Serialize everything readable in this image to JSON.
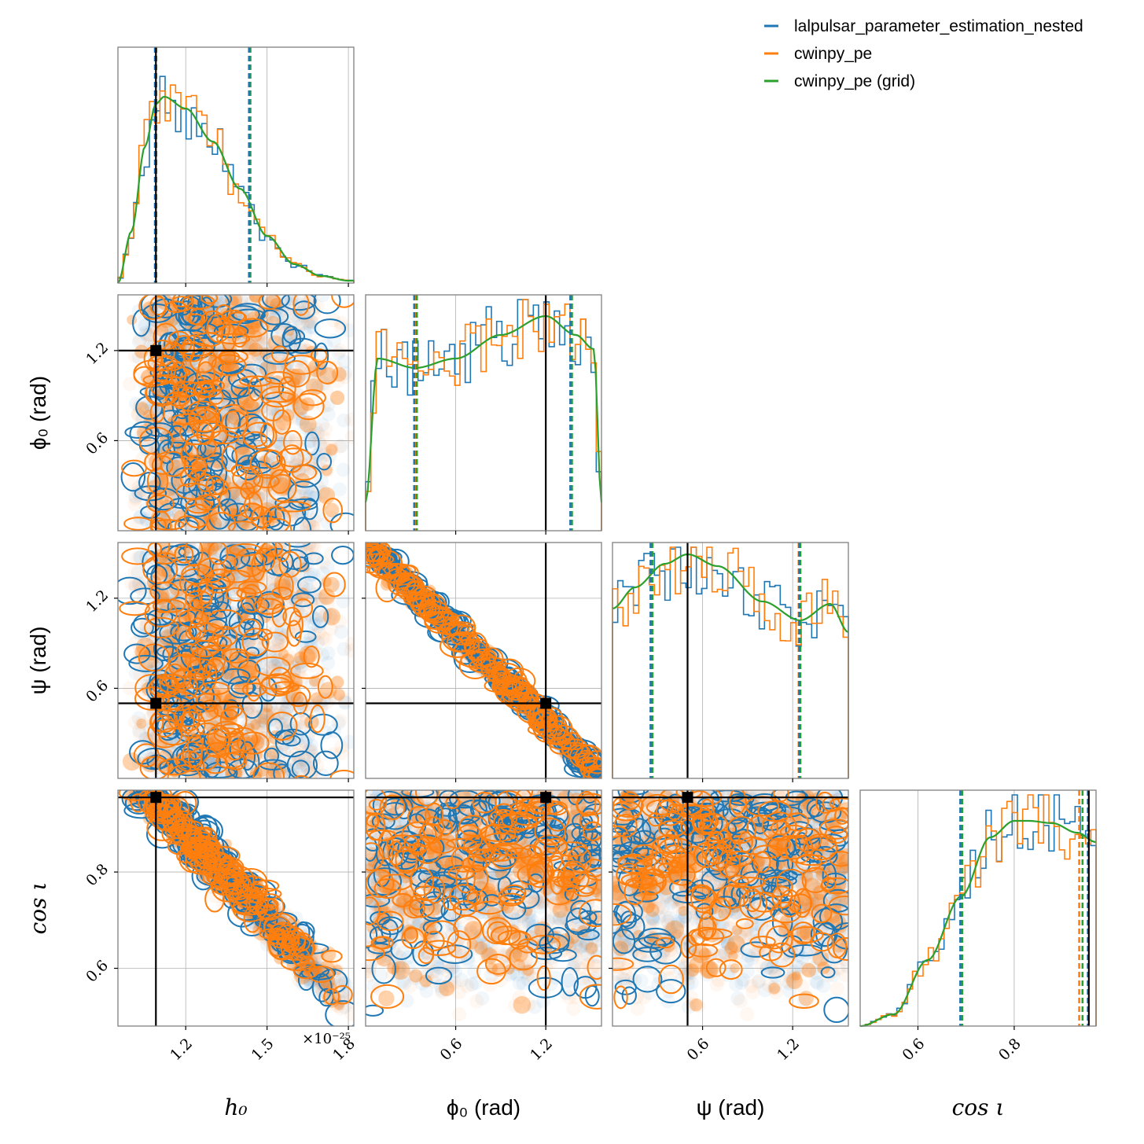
{
  "chart_data": {
    "type": "corner",
    "parameters": [
      {
        "key": "h0",
        "label": "h₀",
        "label_style": "math",
        "range": [
          0.95,
          1.82
        ],
        "ticks": [
          1.2,
          1.5,
          1.8
        ],
        "tick_labels": [
          "1.2",
          "1.5",
          "1.8"
        ],
        "offset_text": "×10⁻²⁵",
        "truth": 1.09,
        "mean": 1.25,
        "sd": 0.17
      },
      {
        "key": "phi0",
        "label": "ϕ₀ (rad)",
        "label_style": "mixed",
        "range": [
          0.0,
          1.571
        ],
        "ticks": [
          0.6,
          1.2
        ],
        "tick_labels": [
          "0.6",
          "1.2"
        ],
        "truth": 1.2
      },
      {
        "key": "psi",
        "label": "ψ (rad)",
        "label_style": "mixed",
        "range": [
          0.0,
          1.571
        ],
        "ticks": [
          0.6,
          1.2
        ],
        "tick_labels": [
          "0.6",
          "1.2"
        ],
        "truth": 0.5
      },
      {
        "key": "cosi",
        "label": "cos ι",
        "label_style": "math",
        "range": [
          0.48,
          0.97
        ],
        "ticks": [
          0.6,
          0.8
        ],
        "tick_labels": [
          "0.6",
          "0.8"
        ],
        "truth": 0.955
      }
    ],
    "series": [
      {
        "name": "lalpulsar_parameter_estimation_nested",
        "color": "#1f77b4",
        "style": "step"
      },
      {
        "name": "cwinpy_pe",
        "color": "#ff7f0e",
        "style": "step"
      },
      {
        "name": "cwinpy_pe (grid)",
        "color": "#2ca02c",
        "style": "line"
      }
    ],
    "credible_intervals": {
      "h0": {
        "blue": [
          1.09,
          1.438
        ],
        "orange": [
          1.088,
          1.433
        ],
        "green": [
          1.088,
          1.435
        ]
      },
      "phi0": {
        "blue": [
          0.33,
          1.37
        ],
        "orange": [
          0.33,
          1.365
        ],
        "green": [
          0.335,
          1.368
        ]
      },
      "psi": {
        "blue": [
          0.26,
          1.25
        ],
        "orange": [
          0.255,
          1.24
        ],
        "green": [
          0.26,
          1.245
        ]
      },
      "cosi": {
        "blue": [
          0.69,
          0.955
        ],
        "orange": [
          0.69,
          0.935
        ],
        "green": [
          0.69,
          0.94
        ]
      }
    },
    "grid_curves": {
      "h0": {
        "x": [
          0.95,
          1.0,
          1.05,
          1.09,
          1.12,
          1.2,
          1.3,
          1.4,
          1.5,
          1.6,
          1.7,
          1.8,
          1.82
        ],
        "y": [
          0.0,
          0.22,
          0.58,
          0.76,
          0.79,
          0.74,
          0.6,
          0.4,
          0.2,
          0.08,
          0.03,
          0.01,
          0.01
        ]
      },
      "phi0": {
        "x": [
          0.0,
          0.08,
          0.33,
          0.6,
          0.9,
          1.2,
          1.4,
          1.52,
          1.571
        ],
        "y": [
          0.12,
          0.73,
          0.69,
          0.73,
          0.83,
          0.91,
          0.83,
          0.77,
          0.12
        ]
      },
      "psi": {
        "x": [
          0.0,
          0.15,
          0.35,
          0.5,
          0.7,
          1.0,
          1.25,
          1.45,
          1.571
        ],
        "y": [
          0.72,
          0.81,
          0.91,
          0.95,
          0.9,
          0.75,
          0.67,
          0.74,
          0.62
        ]
      },
      "cosi": {
        "x": [
          0.48,
          0.55,
          0.62,
          0.69,
          0.75,
          0.8,
          0.83,
          0.88,
          0.93,
          0.97
        ],
        "y": [
          0.0,
          0.05,
          0.28,
          0.55,
          0.8,
          0.87,
          0.87,
          0.86,
          0.82,
          0.78
        ]
      }
    },
    "legend": "top-right",
    "grid": true
  }
}
